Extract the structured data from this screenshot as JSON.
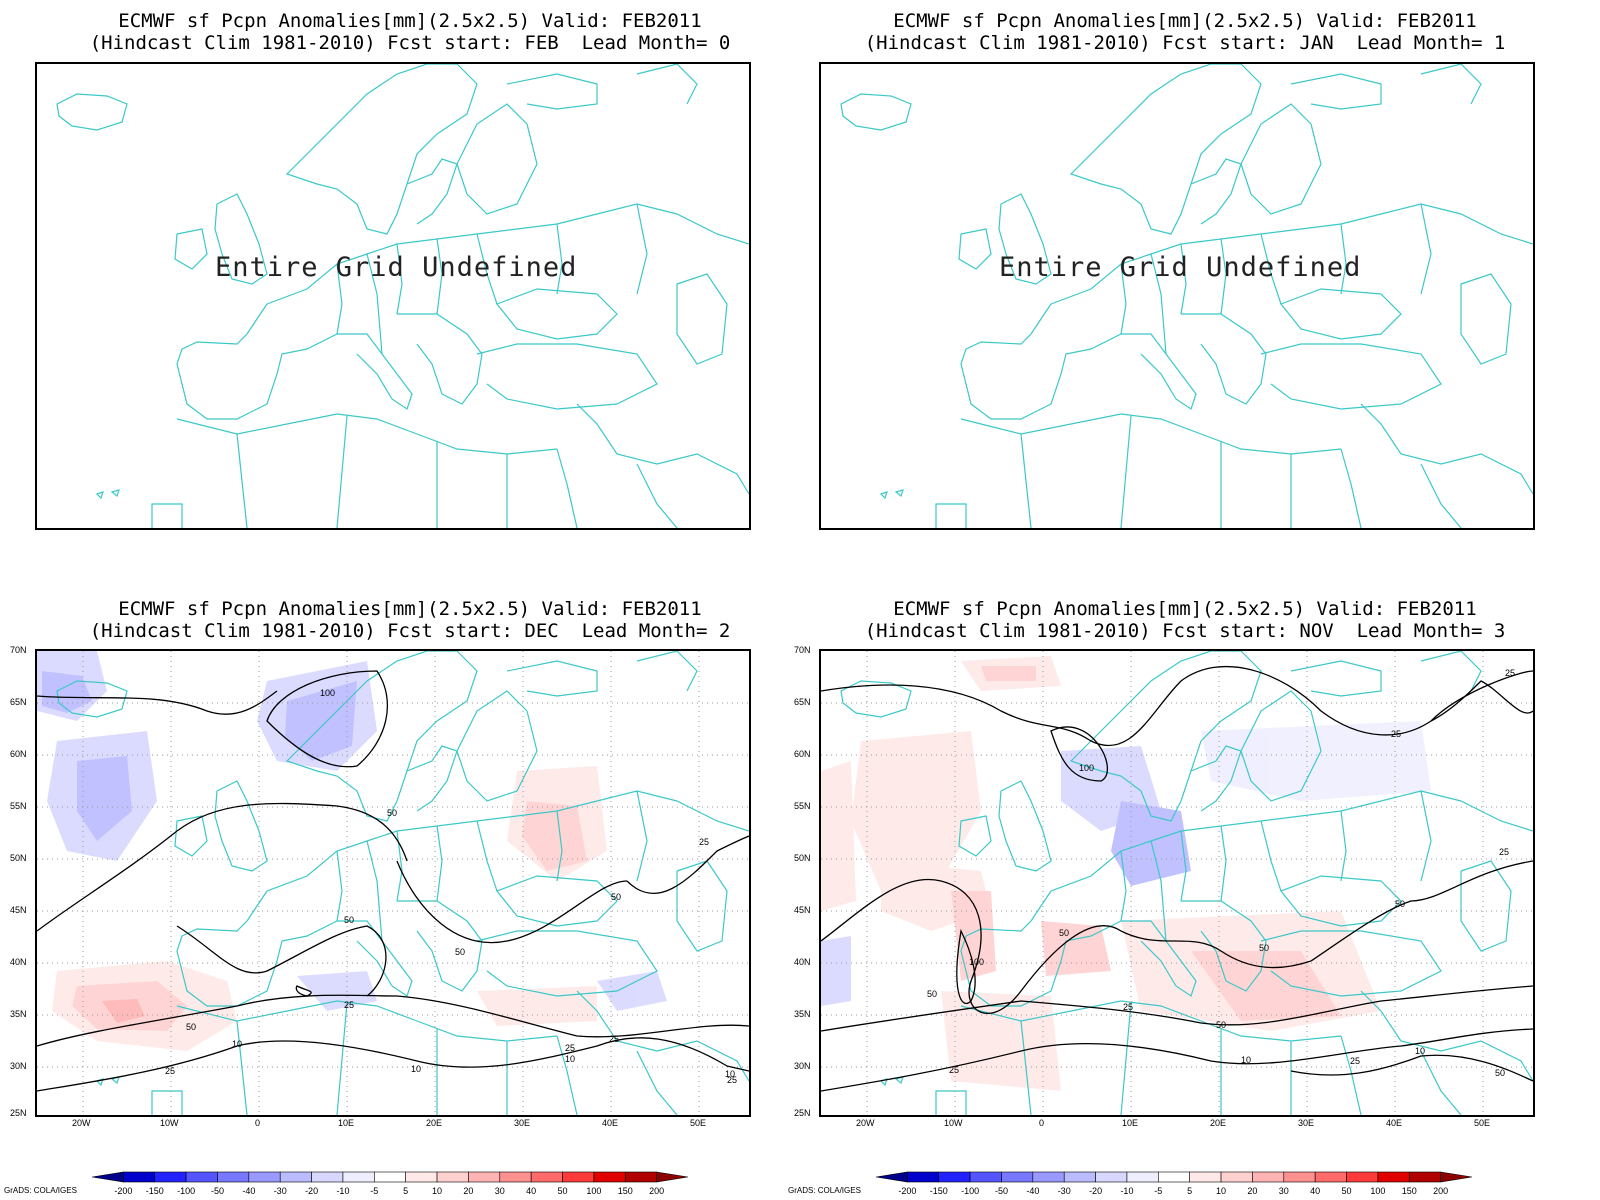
{
  "panels": [
    {
      "title1": "ECMWF sf Pcpn Anomalies[mm](2.5x2.5) Valid: FEB2011",
      "title2": "(Hindcast Clim 1981-2010) Fcst start: FEB  Lead Month= 0",
      "undefined_text": "Entire Grid Undefined"
    },
    {
      "title1": "ECMWF sf Pcpn Anomalies[mm](2.5x2.5) Valid: FEB2011",
      "title2": "(Hindcast Clim 1981-2010) Fcst start: JAN  Lead Month= 1",
      "undefined_text": "Entire Grid Undefined"
    },
    {
      "title1": "ECMWF sf Pcpn Anomalies[mm](2.5x2.5) Valid: FEB2011",
      "title2": "(Hindcast Clim 1981-2010) Fcst start: DEC  Lead Month= 2",
      "undefined_text": ""
    },
    {
      "title1": "ECMWF sf Pcpn Anomalies[mm](2.5x2.5) Valid: FEB2011",
      "title2": "(Hindcast Clim 1981-2010) Fcst start: NOV  Lead Month= 3",
      "undefined_text": ""
    }
  ],
  "lat_labels": [
    "70N",
    "65N",
    "60N",
    "55N",
    "50N",
    "45N",
    "40N",
    "35N",
    "30N",
    "25N"
  ],
  "lon_labels": [
    "20W",
    "10W",
    "0",
    "10E",
    "20E",
    "30E",
    "40E",
    "50E"
  ],
  "contour_labels_p3": [
    "100",
    "50",
    "50",
    "50",
    "50",
    "25",
    "10",
    "10",
    "25",
    "25",
    "50",
    "25",
    "10",
    "10",
    "25",
    "25"
  ],
  "contour_labels_p4": [
    "25",
    "25",
    "100",
    "50",
    "50",
    "50",
    "100",
    "50",
    "25",
    "50",
    "25",
    "10",
    "10",
    "25",
    "25",
    "50"
  ],
  "colorbar": {
    "labels": [
      "-200",
      "-150",
      "-100",
      "-50",
      "-40",
      "-30",
      "-20",
      "-10",
      "-5",
      "5",
      "10",
      "20",
      "30",
      "40",
      "50",
      "100",
      "150",
      "200"
    ],
    "colors": [
      "#00008b",
      "#0000cd",
      "#2222ff",
      "#5555ff",
      "#7777ff",
      "#9999ff",
      "#bbbbff",
      "#d8d8ff",
      "#eeeeff",
      "#ffffff",
      "#ffe8e8",
      "#ffd0d0",
      "#ffb4b4",
      "#ff9090",
      "#ff6a6a",
      "#ff3a3a",
      "#e00000",
      "#b00000",
      "#8b0000"
    ]
  },
  "footer": "GrADS: COLA/IGES",
  "colors": {
    "coast": "#3cc8c8",
    "contour": "#000000",
    "grid": "#999999"
  }
}
